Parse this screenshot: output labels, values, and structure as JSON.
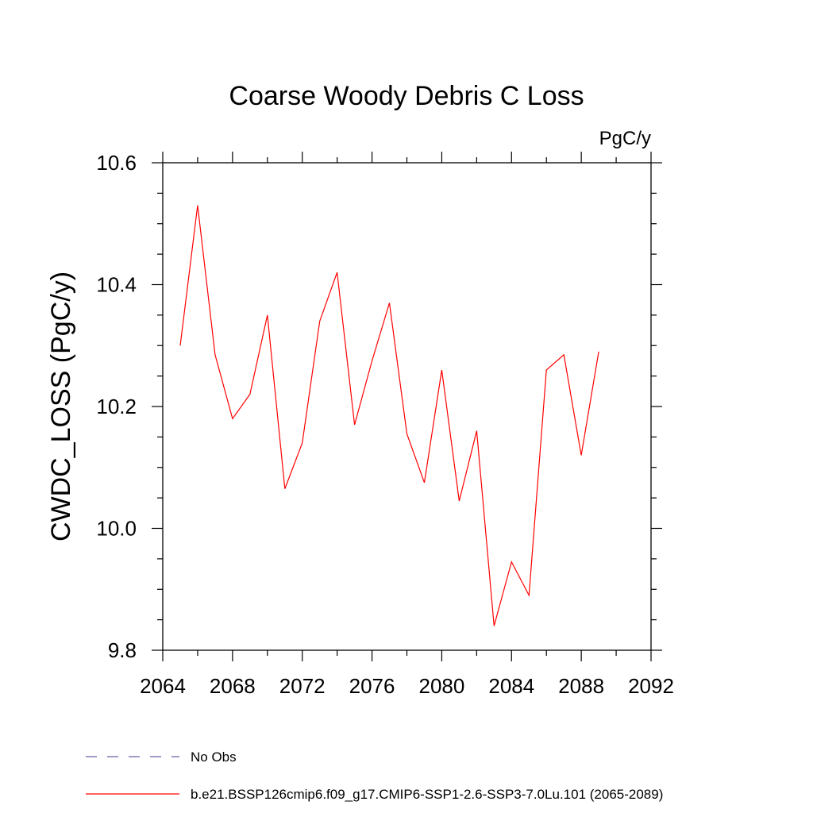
{
  "chart_data": {
    "type": "line",
    "title": "Coarse Woody Debris C Loss",
    "units": "PgC/y",
    "ylabel": "CWDC_LOSS  (PgC/y)",
    "xlabel": "",
    "xlim": [
      2064,
      2092
    ],
    "ylim": [
      9.8,
      10.6
    ],
    "xticks": [
      "2064",
      "2068",
      "2072",
      "2076",
      "2080",
      "2084",
      "2088",
      "2092"
    ],
    "yticks": [
      "9.8",
      "10.0",
      "10.2",
      "10.4",
      "10.6"
    ],
    "grid": false,
    "legend_position": "bottom",
    "series": [
      {
        "name": "b.e21.BSSP126cmip6.f09_g17.CMIP6-SSP1-2.6-SSP3-7.0Lu.101 (2065-2089)",
        "color": "#ff0000",
        "x": [
          2065,
          2066,
          2067,
          2068,
          2069,
          2070,
          2071,
          2072,
          2073,
          2074,
          2075,
          2076,
          2077,
          2078,
          2079,
          2080,
          2081,
          2082,
          2083,
          2084,
          2085,
          2086,
          2087,
          2088,
          2089
        ],
        "y": [
          10.3,
          10.53,
          10.285,
          10.18,
          10.22,
          10.35,
          10.065,
          10.14,
          10.34,
          10.42,
          10.17,
          10.275,
          10.37,
          10.155,
          10.075,
          10.26,
          10.045,
          10.16,
          9.84,
          9.945,
          9.89,
          10.26,
          10.285,
          10.12,
          10.29
        ]
      }
    ],
    "legend": [
      {
        "label": "No Obs",
        "color": "#6b5ca5",
        "style": "dashed"
      },
      {
        "label": "b.e21.BSSP126cmip6.f09_g17.CMIP6-SSP1-2.6-SSP3-7.0Lu.101 (2065-2089)",
        "color": "#ff0000",
        "style": "solid"
      }
    ]
  }
}
